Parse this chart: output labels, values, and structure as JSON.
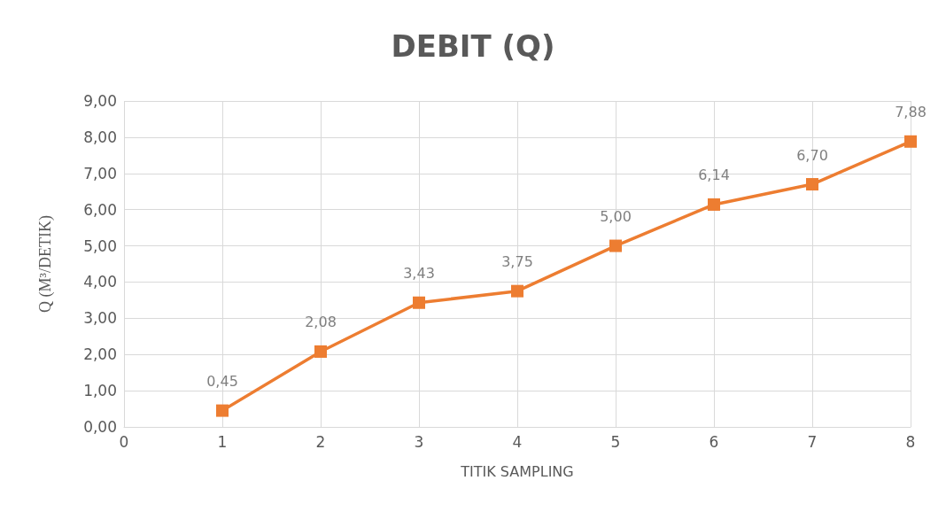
{
  "chart_data": {
    "type": "line",
    "title": "DEBIT (Q)",
    "xlabel": "TITIK SAMPLING",
    "ylabel": "Q (M³/DETIK)",
    "x": [
      1,
      2,
      3,
      4,
      5,
      6,
      7,
      8
    ],
    "series": [
      {
        "color": "#ed7d31",
        "values": [
          0.45,
          2.08,
          3.43,
          3.75,
          5.0,
          6.14,
          6.7,
          7.88
        ],
        "value_labels": [
          "0,45",
          "2,08",
          "3,43",
          "3,75",
          "5,00",
          "6,14",
          "6,70",
          "7,88"
        ]
      }
    ],
    "xlim": [
      0,
      8
    ],
    "xticks": [
      0,
      1,
      2,
      3,
      4,
      5,
      6,
      7,
      8
    ],
    "ylim": [
      0,
      9
    ],
    "yticks": [
      {
        "value": 0,
        "label": "0,00"
      },
      {
        "value": 1,
        "label": "1,00"
      },
      {
        "value": 2,
        "label": "2,00"
      },
      {
        "value": 3,
        "label": "3,00"
      },
      {
        "value": 4,
        "label": "4,00"
      },
      {
        "value": 5,
        "label": "5,00"
      },
      {
        "value": 6,
        "label": "6,00"
      },
      {
        "value": 7,
        "label": "7,00"
      },
      {
        "value": 8,
        "label": "8,00"
      },
      {
        "value": 9,
        "label": "9,00"
      }
    ],
    "grid": true,
    "marker": "square",
    "line_style": "solid"
  }
}
